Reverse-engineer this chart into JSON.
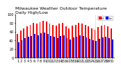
{
  "title": "Milwaukee Weather Outdoor Temperature\nDaily High/Low",
  "highs": [
    55,
    62,
    68,
    72,
    75,
    80,
    78,
    82,
    85,
    83,
    79,
    76,
    74,
    78,
    80,
    72,
    68,
    74,
    76,
    80,
    78,
    75,
    72,
    68,
    65,
    70,
    74,
    76,
    72,
    68
  ],
  "lows": [
    35,
    40,
    45,
    48,
    50,
    55,
    52,
    56,
    58,
    55,
    50,
    48,
    45,
    50,
    52,
    45,
    42,
    46,
    48,
    52,
    50,
    47,
    44,
    40,
    38,
    43,
    46,
    48,
    45,
    42
  ],
  "high_color": "#ff0000",
  "low_color": "#0000ff",
  "bg_color": "#ffffff",
  "ylim": [
    0,
    100
  ],
  "dashed_lines": [
    24,
    26
  ],
  "legend_labels": [
    "Hi",
    "Lo"
  ],
  "title_fontsize": 4.5,
  "tick_fontsize": 3.5
}
